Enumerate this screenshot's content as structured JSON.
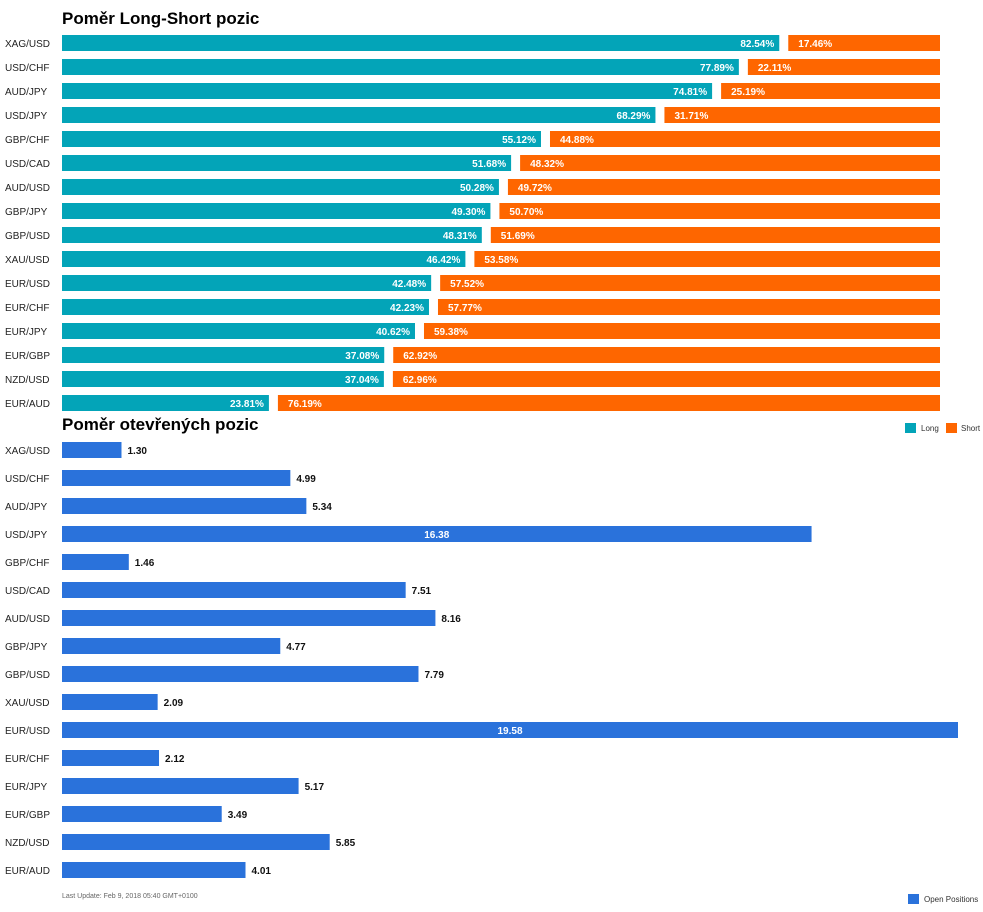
{
  "colors": {
    "long": "#03a4b8",
    "short": "#fe6600",
    "open": "#2a72db"
  },
  "legend_ratio": {
    "long": "Long",
    "short": "Short"
  },
  "legend_open": {
    "open": "Open Positions"
  },
  "footer": {
    "last_update": "Last Update: Feb 9, 2018 05:40 GMT+0100"
  },
  "chart_data": [
    {
      "type": "bar",
      "stacked": true,
      "orientation": "horizontal",
      "title": "Poměr Long-Short pozic",
      "xlim": [
        0,
        100
      ],
      "unit": "%",
      "legend": "bottom-right",
      "categories": [
        "XAG/USD",
        "USD/CHF",
        "AUD/JPY",
        "USD/JPY",
        "GBP/CHF",
        "USD/CAD",
        "AUD/USD",
        "GBP/JPY",
        "GBP/USD",
        "XAU/USD",
        "EUR/USD",
        "EUR/CHF",
        "EUR/JPY",
        "EUR/GBP",
        "NZD/USD",
        "EUR/AUD"
      ],
      "series": [
        {
          "name": "Long",
          "values": [
            82.54,
            77.89,
            74.81,
            68.29,
            55.12,
            51.68,
            50.28,
            49.3,
            48.31,
            46.42,
            42.48,
            42.23,
            40.62,
            37.08,
            37.04,
            23.81
          ],
          "labels": [
            "82.54%",
            "77.89%",
            "74.81%",
            "68.29%",
            "55.12%",
            "51.68%",
            "50.28%",
            "49.30%",
            "48.31%",
            "46.42%",
            "42.48%",
            "42.23%",
            "40.62%",
            "37.08%",
            "37.04%",
            "23.81%"
          ]
        },
        {
          "name": "Short",
          "values": [
            17.46,
            22.11,
            25.19,
            31.71,
            44.88,
            48.32,
            49.72,
            50.7,
            51.69,
            53.58,
            57.52,
            57.77,
            59.38,
            62.92,
            62.96,
            76.19
          ],
          "labels": [
            "17.46%",
            "22.11%",
            "25.19%",
            "31.71%",
            "44.88%",
            "48.32%",
            "49.72%",
            "50.70%",
            "51.69%",
            "53.58%",
            "57.52%",
            "57.77%",
            "59.38%",
            "62.92%",
            "62.96%",
            "76.19%"
          ]
        }
      ]
    },
    {
      "type": "bar",
      "orientation": "horizontal",
      "title": "Poměr otevřených pozic",
      "xlim": [
        0,
        19.58
      ],
      "legend": "bottom-right",
      "categories": [
        "XAG/USD",
        "USD/CHF",
        "AUD/JPY",
        "USD/JPY",
        "GBP/CHF",
        "USD/CAD",
        "AUD/USD",
        "GBP/JPY",
        "GBP/USD",
        "XAU/USD",
        "EUR/USD",
        "EUR/CHF",
        "EUR/JPY",
        "EUR/GBP",
        "NZD/USD",
        "EUR/AUD"
      ],
      "series": [
        {
          "name": "Open Positions",
          "values": [
            1.3,
            4.99,
            5.34,
            16.38,
            1.46,
            7.51,
            8.16,
            4.77,
            7.79,
            2.09,
            19.58,
            2.12,
            5.17,
            3.49,
            5.85,
            4.01
          ],
          "labels": [
            "1.30",
            "4.99",
            "5.34",
            "16.38",
            "1.46",
            "7.51",
            "8.16",
            "4.77",
            "7.79",
            "2.09",
            "19.58",
            "2.12",
            "5.17",
            "3.49",
            "5.85",
            "4.01"
          ]
        }
      ]
    }
  ]
}
